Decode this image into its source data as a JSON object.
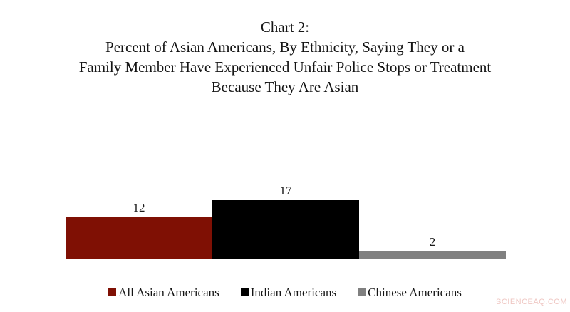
{
  "title": {
    "lines": [
      "Chart 2:",
      "Percent of Asian Americans, By Ethnicity, Saying They or a",
      "Family Member Have Experienced Unfair Police Stops or Treatment",
      "Because They Are Asian"
    ]
  },
  "chart_data": {
    "type": "bar",
    "title": "Chart 2: Percent of Asian Americans, By Ethnicity, Saying They or a Family Member Have Experienced Unfair Police Stops or Treatment Because They Are Asian",
    "categories": [
      "All Asian Americans",
      "Indian Americans",
      "Chinese Americans"
    ],
    "values": [
      12,
      17,
      2
    ],
    "colors": [
      "#7f1004",
      "#000000",
      "#808080"
    ],
    "data_labels": [
      12,
      17,
      2
    ],
    "xlabel": "",
    "ylabel": "",
    "ylim": [
      0,
      17
    ],
    "gridlines": false,
    "axes_hidden": true,
    "legend_position": "bottom"
  },
  "legend": {
    "items": [
      {
        "label": "All Asian Americans",
        "color": "#7f1004"
      },
      {
        "label": "Indian Americans",
        "color": "#000000"
      },
      {
        "label": "Chinese Americans",
        "color": "#808080"
      }
    ]
  },
  "watermark": {
    "text": "SCIENCEAQ.COM",
    "color": "#efc7c3"
  }
}
